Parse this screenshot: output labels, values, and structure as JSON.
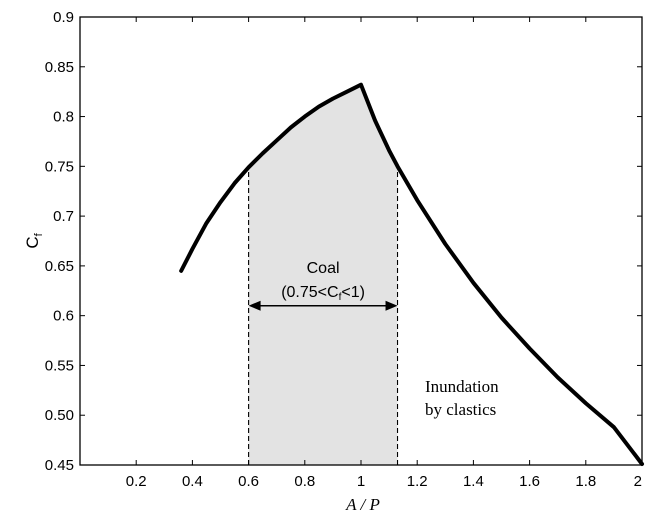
{
  "chart_data": {
    "type": "line",
    "xlabel": "A / P",
    "ylabel": {
      "main": "C",
      "sub": "f"
    },
    "xlim": [
      0,
      2
    ],
    "ylim": [
      0.45,
      0.9
    ],
    "x_ticks": [
      0.2,
      0.4,
      0.6,
      0.8,
      1,
      1.2,
      1.4,
      1.6,
      1.8,
      2
    ],
    "x_tick_labels": [
      "0.2",
      "0.4",
      "0.6",
      "0.8",
      "1",
      "1.2",
      "1.4",
      "1.6",
      "1.8",
      "2"
    ],
    "y_ticks": [
      0.45,
      0.5,
      0.55,
      0.6,
      0.65,
      0.7,
      0.75,
      0.8,
      0.85,
      0.9
    ],
    "y_tick_labels": [
      "0.45",
      "0.50",
      "0.55",
      "0.6",
      "0.65",
      "0.7",
      "0.75",
      "0.8",
      "0.85",
      "0.9"
    ],
    "grid": false,
    "series": [
      {
        "x": [
          0.36,
          0.4,
          0.45,
          0.5,
          0.55,
          0.6,
          0.65,
          0.7,
          0.75,
          0.8,
          0.85,
          0.9,
          0.95,
          1.0,
          1.05,
          1.1,
          1.13,
          1.2,
          1.3,
          1.4,
          1.5,
          1.6,
          1.7,
          1.8,
          1.9,
          2.0
        ],
        "y": [
          0.645,
          0.667,
          0.693,
          0.714,
          0.733,
          0.749,
          0.763,
          0.776,
          0.789,
          0.8,
          0.81,
          0.818,
          0.825,
          0.832,
          0.796,
          0.766,
          0.75,
          0.716,
          0.672,
          0.633,
          0.598,
          0.567,
          0.538,
          0.512,
          0.488,
          0.451
        ],
        "color": "#000000"
      }
    ],
    "shaded_region": {
      "x_from": 0.6,
      "x_to": 1.13,
      "color": "#e3e3e3"
    },
    "arrow": {
      "x_from": 0.6,
      "x_to": 1.13,
      "y": 0.61
    },
    "annotations": {
      "coal": "Coal",
      "coal_range_prefix": "(0.75<C",
      "coal_range_sub": "f",
      "coal_range_suffix": "<1)",
      "inundation_line1": "Inundation",
      "inundation_line2": "by clastics"
    }
  }
}
